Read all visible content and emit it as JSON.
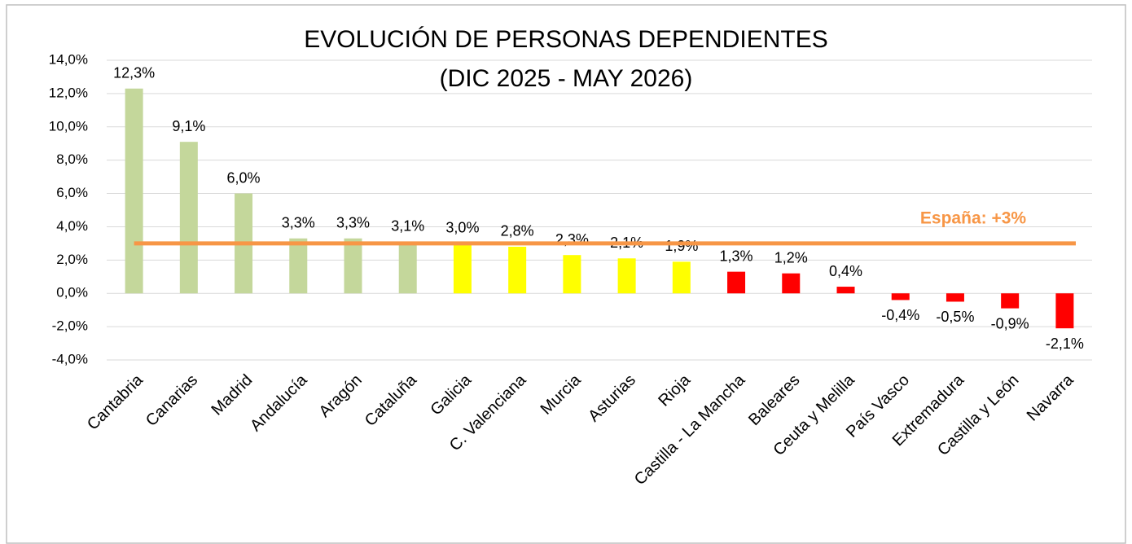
{
  "chart_data": {
    "type": "bar",
    "title": [
      "EVOLUCIÓN DE PERSONAS DEPENDIENTES",
      "(DIC 2025 - MAY 2026)"
    ],
    "categories": [
      "Cantabria",
      "Canarias",
      "Madrid",
      "Andalucía",
      "Aragón",
      "Cataluña",
      "Galicia",
      "C. Valenciana",
      "Murcia",
      "Asturias",
      "Rioja",
      "Castilla - La Mancha",
      "Baleares",
      "Ceuta y Melilla",
      "País Vasco",
      "Extremadura",
      "Castilla y León",
      "Navarra"
    ],
    "values": [
      12.3,
      9.1,
      6.0,
      3.3,
      3.3,
      3.1,
      3.0,
      2.8,
      2.3,
      2.1,
      1.9,
      1.3,
      1.2,
      0.4,
      -0.4,
      -0.5,
      -0.9,
      -2.1
    ],
    "value_labels": [
      "12,3%",
      "9,1%",
      "6,0%",
      "3,3%",
      "3,3%",
      "3,1%",
      "3,0%",
      "2,8%",
      "2,3%",
      "2,1%",
      "1,9%",
      "1,3%",
      "1,2%",
      "0,4%",
      "-0,4%",
      "-0,5%",
      "-0,9%",
      "-2,1%"
    ],
    "colors": [
      "#c4d79b",
      "#c4d79b",
      "#c4d79b",
      "#c4d79b",
      "#c4d79b",
      "#c4d79b",
      "#ffff00",
      "#ffff00",
      "#ffff00",
      "#ffff00",
      "#ffff00",
      "#ff0000",
      "#ff0000",
      "#ff0000",
      "#ff0000",
      "#ff0000",
      "#ff0000",
      "#ff0000"
    ],
    "ylim": [
      -4,
      14
    ],
    "yticks": [
      {
        "value": -4,
        "label": "-4,0%"
      },
      {
        "value": -2,
        "label": "-2,0%"
      },
      {
        "value": 0,
        "label": "0,0%"
      },
      {
        "value": 2,
        "label": "2,0%"
      },
      {
        "value": 4,
        "label": "4,0%"
      },
      {
        "value": 6,
        "label": "6,0%"
      },
      {
        "value": 8,
        "label": "8,0%"
      },
      {
        "value": 10,
        "label": "10,0%"
      },
      {
        "value": 12,
        "label": "12,0%"
      },
      {
        "value": 14,
        "label": "14,0%"
      }
    ],
    "grid": true,
    "reference_line": {
      "value": 3,
      "label": "España: +3%",
      "color": "#f79646"
    }
  }
}
